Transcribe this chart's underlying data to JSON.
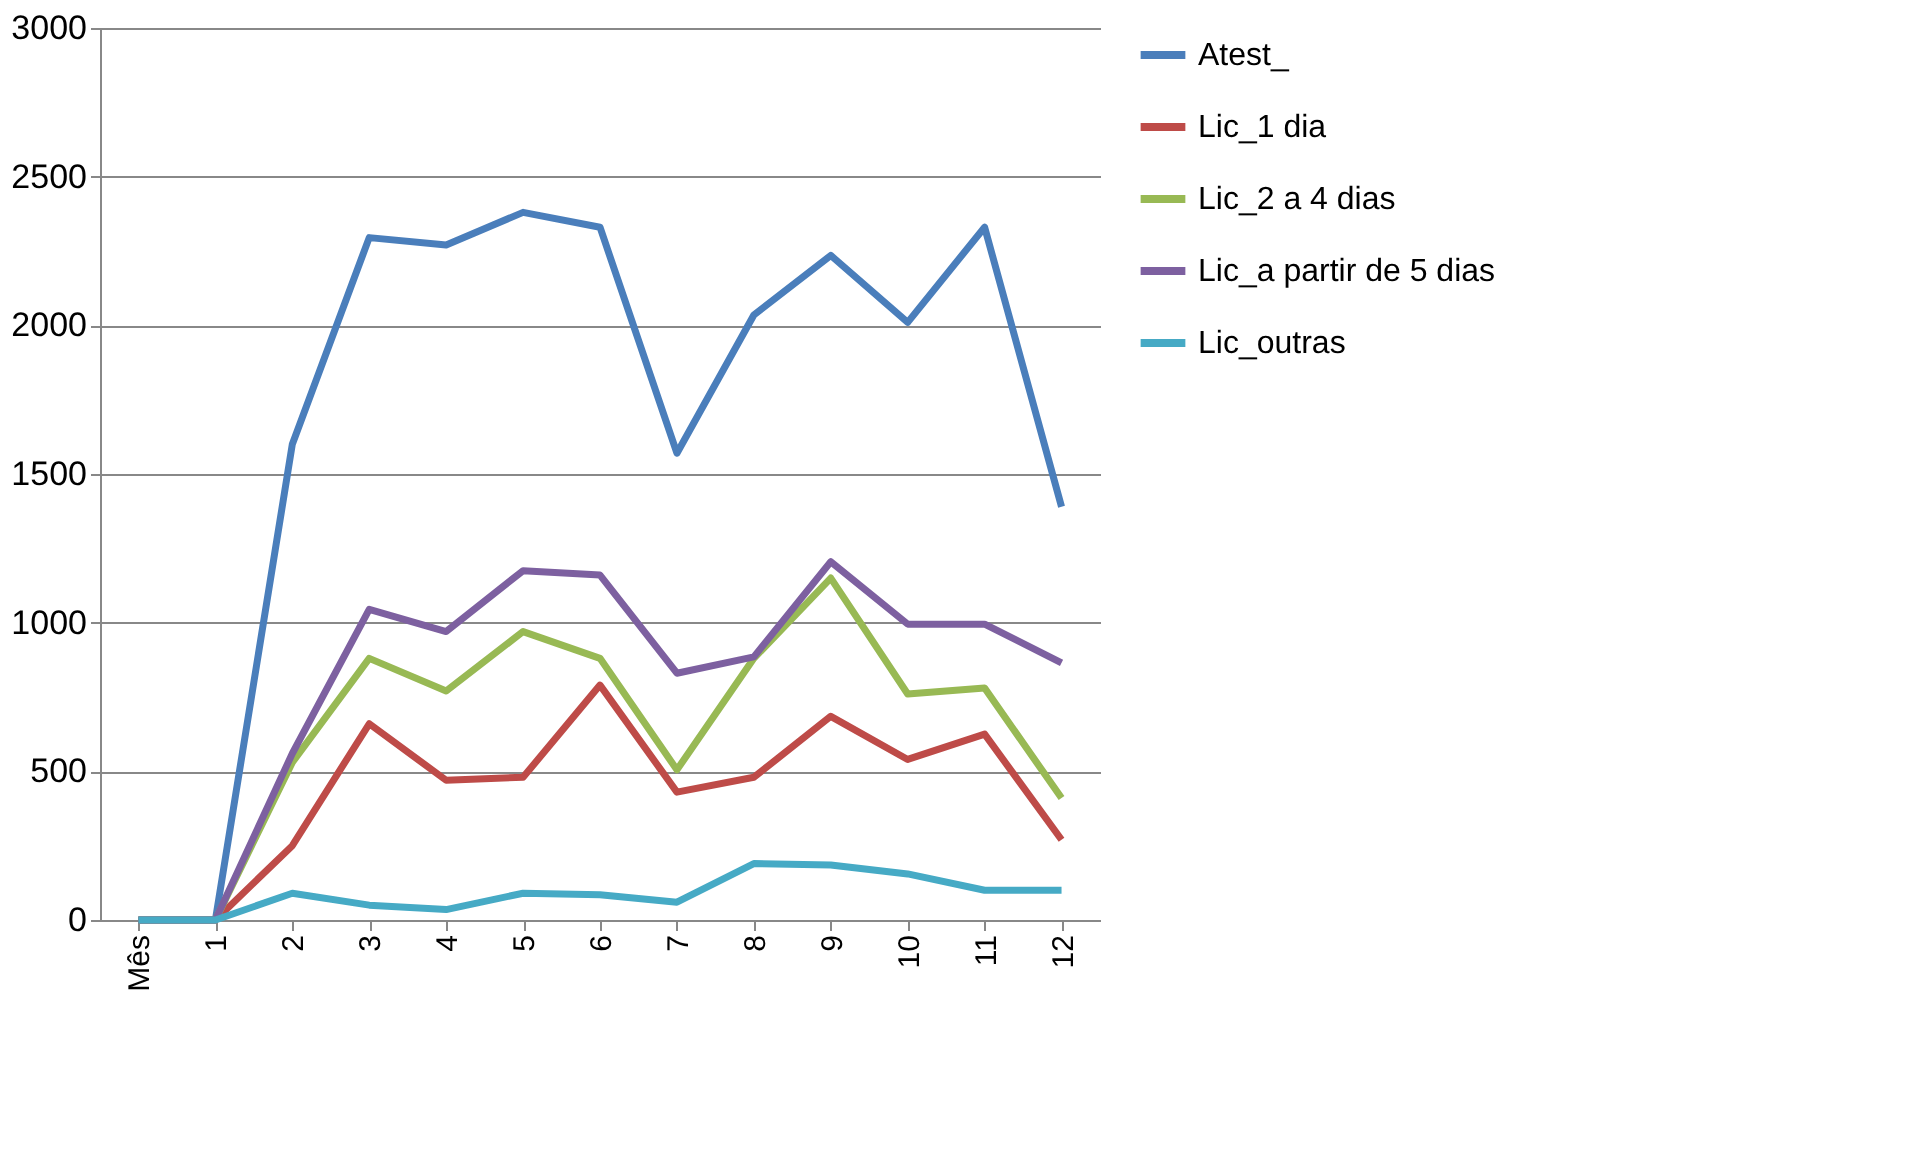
{
  "chart_data": {
    "type": "line",
    "categories": [
      "Mês",
      "1",
      "2",
      "3",
      "4",
      "5",
      "6",
      "7",
      "8",
      "9",
      "10",
      "11",
      "12"
    ],
    "series": [
      {
        "name": "Atest_",
        "color": "#4a7ebb",
        "values": [
          0,
          0,
          1600,
          2295,
          2270,
          2380,
          2330,
          1570,
          2035,
          2235,
          2010,
          2330,
          1390
        ]
      },
      {
        "name": "Lic_1 dia",
        "color": "#be4b48",
        "values": [
          0,
          0,
          250,
          660,
          470,
          480,
          790,
          430,
          480,
          685,
          540,
          625,
          270
        ]
      },
      {
        "name": "Lic_2 a 4 dias",
        "color": "#98b954",
        "values": [
          0,
          0,
          530,
          880,
          770,
          970,
          880,
          505,
          880,
          1150,
          760,
          780,
          410
        ]
      },
      {
        "name": "Lic_a partir de 5 dias",
        "color": "#7d60a0",
        "values": [
          0,
          0,
          560,
          1045,
          970,
          1175,
          1160,
          830,
          885,
          1205,
          995,
          995,
          865
        ]
      },
      {
        "name": "Lic_outras",
        "color": "#46aac5",
        "values": [
          0,
          0,
          90,
          50,
          35,
          90,
          85,
          60,
          190,
          185,
          155,
          100,
          100
        ]
      }
    ],
    "ylim": [
      0,
      3000
    ],
    "yticks": [
      0,
      500,
      1000,
      1500,
      2000,
      2500,
      3000
    ],
    "grid": "y",
    "legend": "right",
    "line_style": "solid"
  }
}
